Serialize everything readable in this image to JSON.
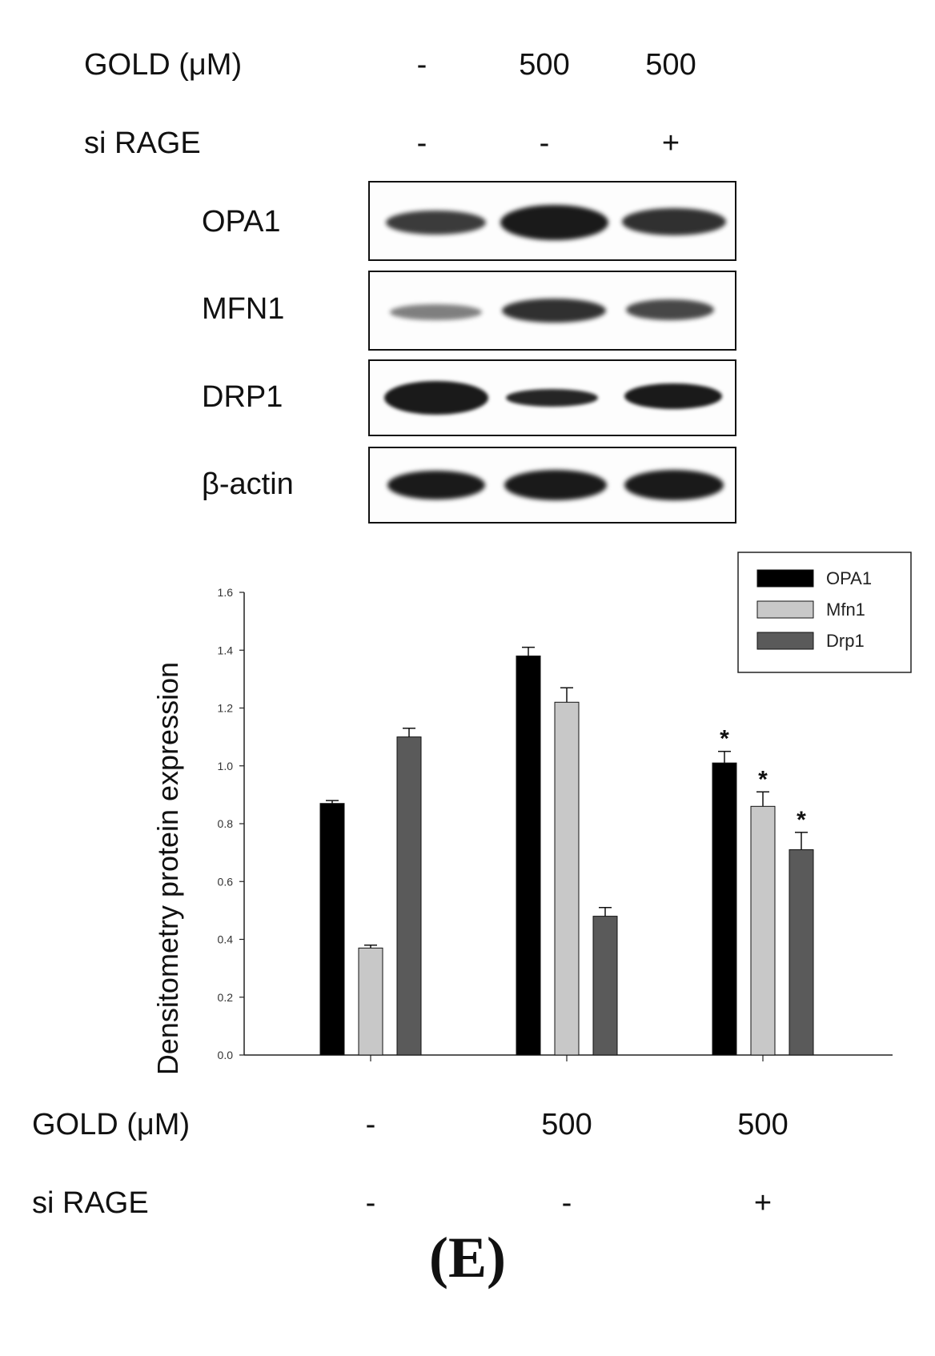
{
  "blot_section": {
    "conditions": [
      {
        "label": "GOLD (μM)",
        "values": [
          "-",
          "500",
          "500"
        ]
      },
      {
        "label": "si RAGE",
        "values": [
          "-",
          "-",
          "+"
        ]
      }
    ],
    "proteins": [
      "OPA1",
      "MFN1",
      "DRP1",
      "β-actin"
    ]
  },
  "chart_data": {
    "type": "bar",
    "categories": [
      "-",
      "500",
      "500"
    ],
    "ylabel": "Densitometry protein expression",
    "ylim": [
      0.0,
      1.6
    ],
    "yticks": [
      "0.0",
      "0.2",
      "0.4",
      "0.6",
      "0.8",
      "1.0",
      "1.2",
      "1.4",
      "1.6"
    ],
    "legend_position": "top-right",
    "series": [
      {
        "name": "OPA1",
        "color": "#000000",
        "values": [
          0.87,
          1.38,
          1.01
        ],
        "errors": [
          0.01,
          0.03,
          0.04
        ]
      },
      {
        "name": "Mfn1",
        "color": "#c8c8c8",
        "values": [
          0.37,
          1.22,
          0.86
        ],
        "errors": [
          0.01,
          0.05,
          0.05
        ]
      },
      {
        "name": "Drp1",
        "color": "#5a5a5a",
        "values": [
          1.1,
          0.48,
          0.71
        ],
        "errors": [
          0.03,
          0.03,
          0.06
        ]
      }
    ],
    "annotations": [
      {
        "series": 0,
        "category": 2,
        "text": "*"
      },
      {
        "series": 1,
        "category": 2,
        "text": "*"
      },
      {
        "series": 2,
        "category": 2,
        "text": "*"
      }
    ],
    "x_conditions": [
      {
        "label": "GOLD (μM)",
        "values": [
          "-",
          "500",
          "500"
        ]
      },
      {
        "label": "si RAGE",
        "values": [
          "-",
          "-",
          "+"
        ]
      }
    ]
  },
  "panel_label": "(E)"
}
